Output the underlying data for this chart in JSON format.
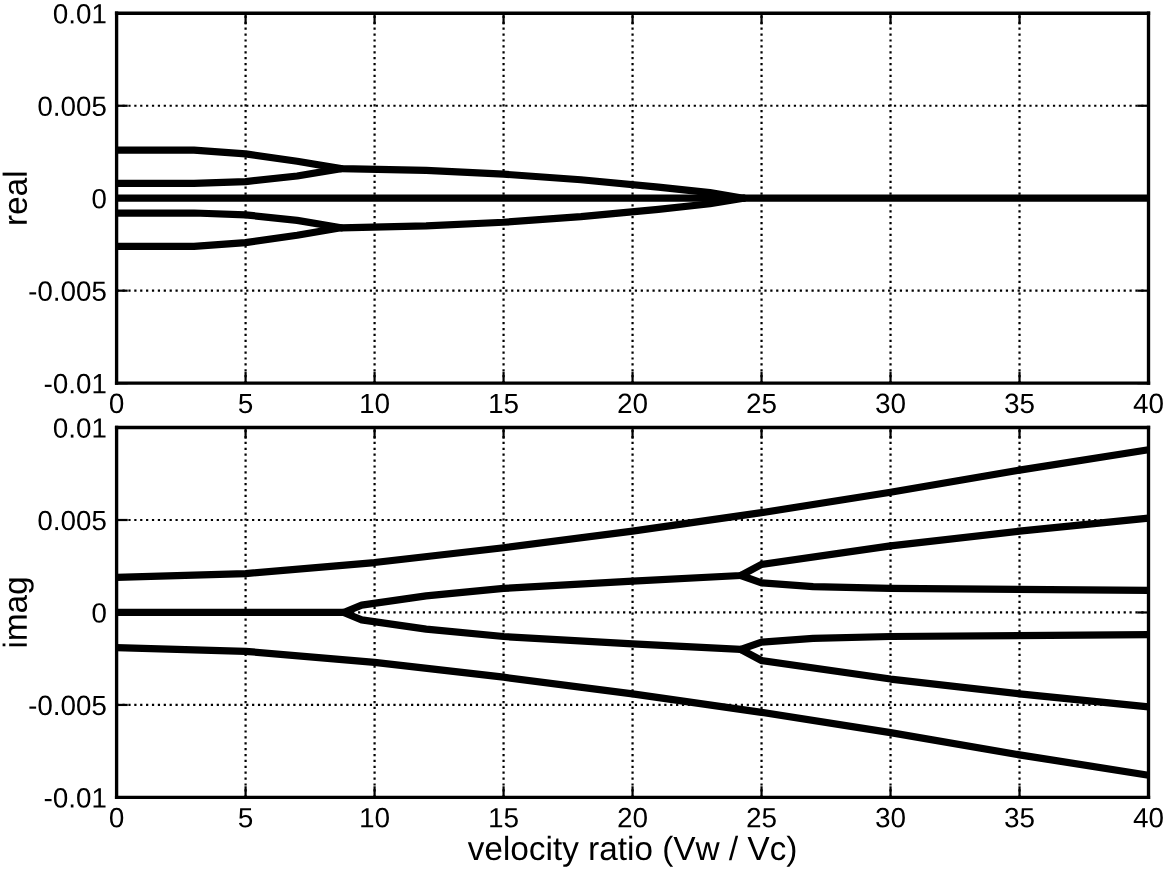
{
  "chart_data": [
    {
      "type": "line",
      "ylabel": "real",
      "xlim": [
        0,
        40
      ],
      "ylim": [
        -0.01,
        0.01
      ],
      "xticks": [
        0,
        5,
        10,
        15,
        20,
        25,
        30,
        35,
        40
      ],
      "yticks": [
        -0.01,
        -0.005,
        0,
        0.005,
        0.01
      ],
      "grid": true,
      "line_style": "solid",
      "series": [
        {
          "color": "#000000",
          "x": [
            0,
            3,
            5,
            7,
            8.7,
            12,
            15,
            18,
            21,
            23,
            24.3,
            40
          ],
          "values": [
            0.0026,
            0.0026,
            0.0024,
            0.002,
            0.0016,
            0.0015,
            0.0013,
            0.001,
            0.0006,
            0.0003,
            0,
            0
          ]
        },
        {
          "color": "#000000",
          "x": [
            0,
            3,
            5,
            7,
            8.7
          ],
          "values": [
            0.0008,
            0.0008,
            0.0009,
            0.0012,
            0.0016
          ]
        },
        {
          "color": "#000000",
          "x": [
            0,
            24.3
          ],
          "values": [
            0,
            0
          ]
        },
        {
          "color": "#000000",
          "x": [
            0,
            3,
            5,
            7,
            8.7
          ],
          "values": [
            -0.0008,
            -0.0008,
            -0.0009,
            -0.0012,
            -0.0016
          ]
        },
        {
          "color": "#000000",
          "x": [
            0,
            3,
            5,
            7,
            8.7,
            12,
            15,
            18,
            21,
            23,
            24.3
          ],
          "values": [
            -0.0026,
            -0.0026,
            -0.0024,
            -0.002,
            -0.0016,
            -0.0015,
            -0.0013,
            -0.001,
            -0.0006,
            -0.0003,
            0
          ]
        }
      ]
    },
    {
      "type": "line",
      "ylabel": "imag",
      "xlabel": "velocity ratio (Vw / Vc)",
      "xlim": [
        0,
        40
      ],
      "ylim": [
        -0.01,
        0.01
      ],
      "xticks": [
        0,
        5,
        10,
        15,
        20,
        25,
        30,
        35,
        40
      ],
      "yticks": [
        -0.01,
        -0.005,
        0,
        0.005,
        0.01
      ],
      "grid": true,
      "line_style": "solid",
      "series": [
        {
          "color": "#000000",
          "x": [
            0,
            5,
            10,
            15,
            20,
            25,
            30,
            35,
            40
          ],
          "values": [
            0.0019,
            0.0021,
            0.0027,
            0.0035,
            0.0044,
            0.0054,
            0.0065,
            0.0077,
            0.0088
          ]
        },
        {
          "color": "#000000",
          "x": [
            0,
            8.8,
            9.5,
            12,
            15,
            20,
            24.2,
            25,
            30,
            35,
            40
          ],
          "values": [
            0,
            0,
            0.0004,
            0.0009,
            0.0013,
            0.0017,
            0.002,
            0.0026,
            0.0036,
            0.0044,
            0.0051
          ]
        },
        {
          "color": "#000000",
          "x": [
            24.2,
            25,
            27,
            30,
            40
          ],
          "values": [
            0.002,
            0.0016,
            0.0014,
            0.0013,
            0.0012
          ]
        },
        {
          "color": "#000000",
          "x": [
            8.8,
            9.5,
            12,
            15,
            20,
            24.2,
            25,
            30,
            35,
            40
          ],
          "values": [
            0,
            -0.0004,
            -0.0009,
            -0.0013,
            -0.0017,
            -0.002,
            -0.0026,
            -0.0036,
            -0.0044,
            -0.0051
          ]
        },
        {
          "color": "#000000",
          "x": [
            24.2,
            25,
            27,
            30,
            40
          ],
          "values": [
            -0.002,
            -0.0016,
            -0.0014,
            -0.0013,
            -0.0012
          ]
        },
        {
          "color": "#000000",
          "x": [
            0,
            5,
            10,
            15,
            20,
            25,
            30,
            35,
            40
          ],
          "values": [
            -0.0019,
            -0.0021,
            -0.0027,
            -0.0035,
            -0.0044,
            -0.0054,
            -0.0065,
            -0.0077,
            -0.0088
          ]
        }
      ]
    }
  ]
}
